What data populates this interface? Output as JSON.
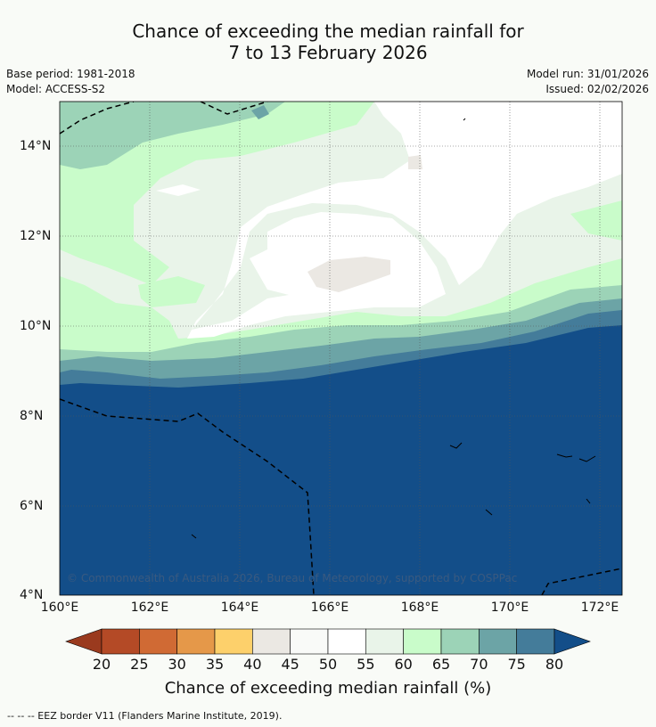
{
  "title_line1": "Chance of exceeding the median rainfall for",
  "title_line2": "7 to 13 February 2026",
  "base_period": "Base period: 1981-2018",
  "model": "Model: ACCESS-S2",
  "model_run": "Model run: 31/01/2026",
  "issued": "Issued: 02/02/2026",
  "copyright": "© Commonwealth of Australia 2026, Bureau of Meteorology, supported by COSPPac",
  "footnote": "--  --  -- EEZ border V11 (Flanders Marine Institute, 2019).",
  "colorbar": {
    "title": "Chance of exceeding median rainfall (%)",
    "ticks": [
      "20",
      "25",
      "30",
      "35",
      "40",
      "45",
      "50",
      "55",
      "60",
      "65",
      "70",
      "75",
      "80"
    ],
    "colors": {
      "lt20": "#9a3a1e",
      "b20_25": "#b44a26",
      "b25_30": "#d06a34",
      "b30_35": "#e59849",
      "b35_40": "#fdd06b",
      "b40_45": "#ebe8e3",
      "b45_50": "#f9faf8",
      "b50_55": "#ffffff",
      "b55_60": "#e9f4e9",
      "b60_65": "#c9fcca",
      "b65_70": "#9cd3b7",
      "b70_75": "#6ca4a6",
      "b75_80": "#447c9a",
      "gt80": "#134e89"
    }
  },
  "axes": {
    "x_ticks": [
      "160°E",
      "162°E",
      "164°E",
      "166°E",
      "168°E",
      "170°E",
      "172°E"
    ],
    "y_ticks": [
      "14°N",
      "12°N",
      "10°N",
      "8°N",
      "6°N",
      "4°N"
    ],
    "lon_range": [
      160,
      172.5
    ],
    "lat_range": [
      4,
      15
    ]
  }
}
